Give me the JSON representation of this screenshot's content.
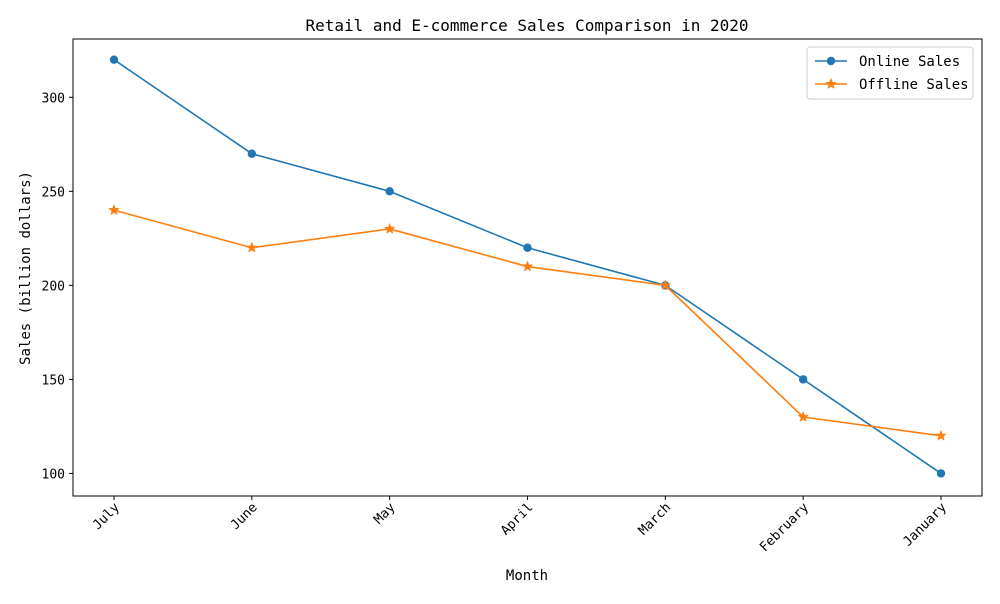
{
  "chart_data": {
    "type": "line",
    "title": "Retail and E-commerce Sales Comparison in 2020",
    "xlabel": "Month",
    "ylabel": "Sales (billion dollars)",
    "categories": [
      "July",
      "June",
      "May",
      "April",
      "March",
      "February",
      "January"
    ],
    "series": [
      {
        "name": "Online Sales",
        "values": [
          320,
          270,
          250,
          220,
          200,
          150,
          100
        ],
        "color": "#1f77b4",
        "marker": "circle"
      },
      {
        "name": "Offline Sales",
        "values": [
          240,
          220,
          230,
          210,
          200,
          130,
          120
        ],
        "color": "#ff7f0e",
        "marker": "star"
      }
    ],
    "ylim": [
      88,
      331
    ],
    "yticks": [
      100,
      150,
      200,
      250,
      300
    ],
    "grid": false,
    "legend_position": "top-right",
    "xtick_rotation": 45
  }
}
